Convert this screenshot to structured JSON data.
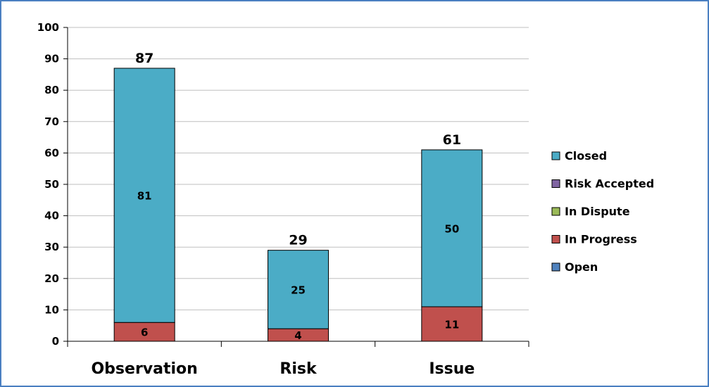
{
  "chart_data": {
    "type": "bar",
    "stacked": true,
    "categories": [
      "Observation",
      "Risk",
      "Issue"
    ],
    "series": [
      {
        "name": "Open",
        "color": "#4f81bd",
        "values": [
          0,
          0,
          0
        ]
      },
      {
        "name": "In Progress",
        "color": "#c0504d",
        "values": [
          6,
          4,
          11
        ]
      },
      {
        "name": "In Dispute",
        "color": "#9bbb59",
        "values": [
          0,
          0,
          0
        ]
      },
      {
        "name": "Risk Accepted",
        "color": "#8064a2",
        "values": [
          0,
          0,
          0
        ]
      },
      {
        "name": "Closed",
        "color": "#4bacc6",
        "values": [
          81,
          25,
          50
        ]
      }
    ],
    "totals": [
      87,
      29,
      61
    ],
    "ylim": [
      0,
      100
    ],
    "yticks": [
      0,
      10,
      20,
      30,
      40,
      50,
      60,
      70,
      80,
      90,
      100
    ],
    "grid": true,
    "legend_position": "right",
    "legend_order": [
      "Closed",
      "Risk Accepted",
      "In Dispute",
      "In Progress",
      "Open"
    ]
  }
}
